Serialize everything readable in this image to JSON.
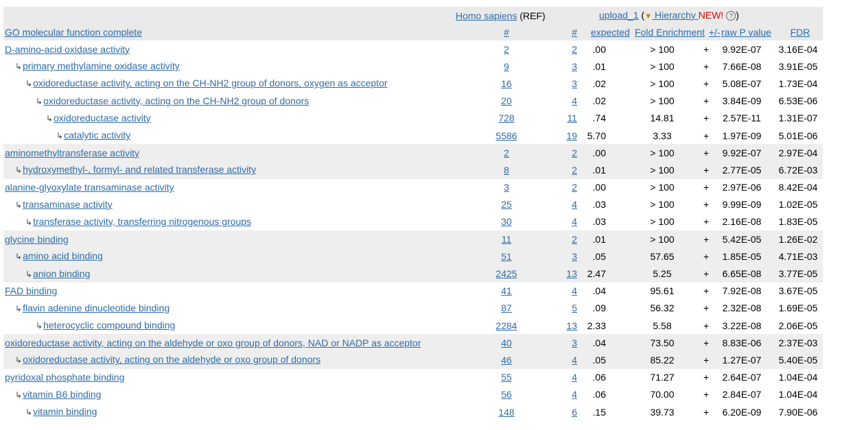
{
  "header": {
    "ref_organism": "Homo sapiens",
    "ref_suffix": " (REF)",
    "upload": "upload_1",
    "open_paren": " (",
    "hierarchy_icon": "▼",
    "hierarchy": " Hierarchy ",
    "new_badge": "NEW!",
    "help_icon": "?",
    "close_paren": ")",
    "go_title": "GO molecular function complete",
    "ref_count": "#",
    "up_count": "#",
    "expected": "expected",
    "fold_enrichment": "Fold Enrichment",
    "plus_minus": "+/-",
    "raw_p": "raw P value",
    "fdr": "FDR"
  },
  "rows": [
    {
      "term": "D-amino-acid oxidase activity",
      "level": 0,
      "ref": "2",
      "up": "2",
      "expected": ".00",
      "fold": "> 100",
      "pm": "+",
      "p": "9.92E-07",
      "fdr": "3.16E-04"
    },
    {
      "term": "primary methylamine oxidase activity",
      "level": 1,
      "ref": "9",
      "up": "3",
      "expected": ".01",
      "fold": "> 100",
      "pm": "+",
      "p": "7.66E-08",
      "fdr": "3.91E-05"
    },
    {
      "term": "oxidoreductase activity, acting on the CH-NH2 group of donors, oxygen as acceptor",
      "level": 2,
      "ref": "16",
      "up": "3",
      "expected": ".02",
      "fold": "> 100",
      "pm": "+",
      "p": "5.08E-07",
      "fdr": "1.73E-04"
    },
    {
      "term": "oxidoreductase activity, acting on the CH-NH2 group of donors",
      "level": 3,
      "ref": "20",
      "up": "4",
      "expected": ".02",
      "fold": "> 100",
      "pm": "+",
      "p": "3.84E-09",
      "fdr": "6.53E-06"
    },
    {
      "term": "oxidoreductase activity",
      "level": 4,
      "ref": "728",
      "up": "11",
      "expected": ".74",
      "fold": "14.81",
      "pm": "+",
      "p": "2.57E-11",
      "fdr": "1.31E-07"
    },
    {
      "term": "catalytic activity",
      "level": 5,
      "ref": "5586",
      "up": "19",
      "expected": "5.70",
      "fold": "3.33",
      "pm": "+",
      "p": "1.97E-09",
      "fdr": "5.01E-06"
    },
    {
      "term": "aminomethyltransferase activity",
      "level": 0,
      "ref": "2",
      "up": "2",
      "expected": ".00",
      "fold": "> 100",
      "pm": "+",
      "p": "9.92E-07",
      "fdr": "2.97E-04"
    },
    {
      "term": "hydroxymethyl-, formyl- and related transferase activity",
      "level": 1,
      "ref": "8",
      "up": "2",
      "expected": ".01",
      "fold": "> 100",
      "pm": "+",
      "p": "2.77E-05",
      "fdr": "6.72E-03"
    },
    {
      "term": "alanine-glyoxylate transaminase activity",
      "level": 0,
      "ref": "3",
      "up": "2",
      "expected": ".00",
      "fold": "> 100",
      "pm": "+",
      "p": "2.97E-06",
      "fdr": "8.42E-04"
    },
    {
      "term": "transaminase activity",
      "level": 1,
      "ref": "25",
      "up": "4",
      "expected": ".03",
      "fold": "> 100",
      "pm": "+",
      "p": "9.99E-09",
      "fdr": "1.02E-05"
    },
    {
      "term": "transferase activity, transferring nitrogenous groups",
      "level": 2,
      "ref": "30",
      "up": "4",
      "expected": ".03",
      "fold": "> 100",
      "pm": "+",
      "p": "2.16E-08",
      "fdr": "1.83E-05"
    },
    {
      "term": "glycine binding",
      "level": 0,
      "ref": "11",
      "up": "2",
      "expected": ".01",
      "fold": "> 100",
      "pm": "+",
      "p": "5.42E-05",
      "fdr": "1.26E-02"
    },
    {
      "term": "amino acid binding",
      "level": 1,
      "ref": "51",
      "up": "3",
      "expected": ".05",
      "fold": "57.65",
      "pm": "+",
      "p": "1.85E-05",
      "fdr": "4.71E-03"
    },
    {
      "term": "anion binding",
      "level": 2,
      "ref": "2425",
      "up": "13",
      "expected": "2.47",
      "fold": "5.25",
      "pm": "+",
      "p": "6.65E-08",
      "fdr": "3.77E-05"
    },
    {
      "term": "FAD binding",
      "level": 0,
      "ref": "41",
      "up": "4",
      "expected": ".04",
      "fold": "95.61",
      "pm": "+",
      "p": "7.92E-08",
      "fdr": "3.67E-05"
    },
    {
      "term": "flavin adenine dinucleotide binding",
      "level": 1,
      "ref": "87",
      "up": "5",
      "expected": ".09",
      "fold": "56.32",
      "pm": "+",
      "p": "2.32E-08",
      "fdr": "1.69E-05"
    },
    {
      "term": "heterocyclic compound binding",
      "level": 3,
      "ref": "2284",
      "up": "13",
      "expected": "2.33",
      "fold": "5.58",
      "pm": "+",
      "p": "3.22E-08",
      "fdr": "2.06E-05"
    },
    {
      "term": "oxidoreductase activity, acting on the aldehyde or oxo group of donors, NAD or NADP as acceptor",
      "level": 0,
      "ref": "40",
      "up": "3",
      "expected": ".04",
      "fold": "73.50",
      "pm": "+",
      "p": "8.83E-06",
      "fdr": "2.37E-03"
    },
    {
      "term": "oxidoreductase activity, acting on the aldehyde or oxo group of donors",
      "level": 1,
      "ref": "46",
      "up": "4",
      "expected": ".05",
      "fold": "85.22",
      "pm": "+",
      "p": "1.27E-07",
      "fdr": "5.40E-05"
    },
    {
      "term": "pyridoxal phosphate binding",
      "level": 0,
      "ref": "55",
      "up": "4",
      "expected": ".06",
      "fold": "71.27",
      "pm": "+",
      "p": "2.64E-07",
      "fdr": "1.04E-04"
    },
    {
      "term": "vitamin B6 binding",
      "level": 1,
      "ref": "56",
      "up": "4",
      "expected": ".06",
      "fold": "70.00",
      "pm": "+",
      "p": "2.84E-07",
      "fdr": "1.04E-04"
    },
    {
      "term": "vitamin binding",
      "level": 2,
      "ref": "148",
      "up": "6",
      "expected": ".15",
      "fold": "39.73",
      "pm": "+",
      "p": "6.20E-09",
      "fdr": "7.90E-06"
    }
  ],
  "groups": [
    0,
    0,
    0,
    0,
    0,
    0,
    1,
    1,
    0,
    0,
    0,
    1,
    1,
    1,
    0,
    0,
    0,
    1,
    1,
    0,
    0,
    0
  ],
  "tree_arrow": "↳"
}
